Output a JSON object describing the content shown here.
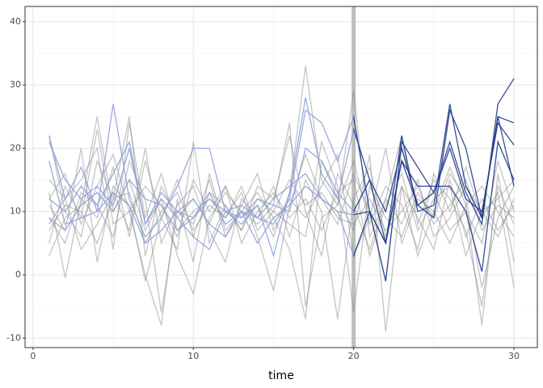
{
  "chart_data": {
    "type": "line",
    "x_label": "time",
    "x": [
      1,
      2,
      3,
      4,
      5,
      6,
      7,
      8,
      9,
      10,
      11,
      12,
      13,
      14,
      15,
      16,
      17,
      18,
      19,
      20,
      21,
      22,
      23,
      24,
      25,
      26,
      27,
      28,
      29,
      30
    ],
    "xlim": [
      -0.5,
      31.46
    ],
    "xticks": [
      0,
      10,
      20,
      30
    ],
    "x_minor_grid": [
      5,
      15,
      25
    ],
    "ylim": [
      -11.5,
      42.4
    ],
    "yticks": [
      -10,
      0,
      10,
      20,
      30,
      40
    ],
    "y_minor_grid": [
      -5,
      5,
      15,
      25,
      35
    ],
    "grid": true,
    "highlight_x": 20,
    "highlight_color": "#1f3a8a",
    "series": [
      {
        "color": "#7f7f7f",
        "opacity": 0.45,
        "values": [
          22,
          10,
          6,
          18,
          12,
          25,
          3,
          14,
          9,
          12,
          8,
          14,
          9,
          11,
          6,
          13,
          33,
          15,
          11,
          29,
          6,
          12,
          22,
          8,
          15,
          12,
          7,
          -5,
          14,
          8
        ]
      },
      {
        "color": "#7f7f7f",
        "opacity": 0.45,
        "values": [
          5,
          14,
          9,
          23,
          8,
          10,
          0,
          -8,
          12,
          2,
          16,
          7,
          10,
          13,
          9,
          4,
          -7,
          18,
          12,
          7,
          19,
          -9,
          14,
          3,
          10,
          17,
          11,
          -8,
          16,
          2
        ]
      },
      {
        "color": "#7f7f7f",
        "opacity": 0.45,
        "values": [
          13,
          -0.5,
          12,
          9,
          17,
          6,
          18,
          9,
          4,
          21,
          5,
          11,
          7,
          14,
          12,
          22,
          10,
          3,
          16,
          11,
          4,
          12,
          8,
          15,
          6,
          9,
          14,
          10,
          6,
          12
        ]
      },
      {
        "color": "#7f7f7f",
        "opacity": 0.45,
        "values": [
          8,
          12,
          15,
          20,
          4,
          24,
          9,
          16,
          7,
          10,
          12,
          9,
          13,
          6,
          -2.5,
          11,
          19,
          12,
          8,
          16,
          10,
          -1,
          20,
          11,
          13,
          7,
          10,
          5,
          18,
          10
        ]
      },
      {
        "color": "#7f7f7f",
        "opacity": 0.45,
        "values": [
          11,
          7,
          20,
          2,
          14,
          11,
          -1,
          9,
          15,
          6,
          13,
          11,
          7,
          12,
          10,
          8,
          6,
          21,
          14,
          -6,
          14,
          9,
          6,
          13,
          9,
          16,
          12,
          -2,
          9,
          14
        ]
      },
      {
        "color": "#7f7f7f",
        "opacity": 0.45,
        "values": [
          3,
          9,
          11,
          25,
          10,
          15,
          7,
          12,
          3,
          -3,
          9,
          13,
          10,
          8,
          11,
          24,
          -5,
          9,
          11,
          18,
          8,
          14,
          11,
          4,
          16,
          10,
          17,
          9,
          13,
          -2
        ]
      },
      {
        "color": "#7f7f7f",
        "opacity": 0.45,
        "values": [
          15,
          12,
          4,
          8,
          13,
          7,
          20,
          5,
          11,
          14,
          7,
          2,
          12,
          9,
          14,
          6,
          15,
          10,
          -7,
          12,
          17,
          6,
          14,
          9,
          4,
          15,
          6,
          12,
          7,
          11
        ]
      },
      {
        "color": "#7f7f7f",
        "opacity": 0.45,
        "values": [
          9,
          5,
          13,
          11,
          6,
          18,
          12,
          -6,
          10,
          8,
          15,
          6,
          11,
          16,
          7,
          12,
          9,
          14,
          19,
          3,
          9,
          20,
          5,
          12,
          10,
          5,
          11,
          14,
          10,
          6
        ]
      },
      {
        "color": "#7f7f7f",
        "opacity": 0.45,
        "values": [
          12,
          16,
          8,
          14,
          19,
          10,
          14,
          11,
          6,
          15,
          10,
          14,
          5,
          10,
          13,
          9,
          12,
          7,
          13,
          15,
          3,
          11,
          16,
          7,
          12,
          14,
          3,
          10,
          12,
          15
        ]
      },
      {
        "color": "#7f7f7f",
        "opacity": 0.45,
        "values": [
          7,
          11,
          10,
          5,
          12,
          13,
          5,
          10,
          13,
          7,
          11,
          9,
          14,
          7,
          10,
          15,
          11,
          13,
          9,
          8,
          12,
          7,
          10,
          14,
          8,
          11,
          15,
          7,
          11,
          9
        ]
      },
      {
        "color": "#8ea2d8",
        "opacity": 0.9,
        "values": [
          21,
          15,
          12,
          14,
          11,
          20,
          8,
          13,
          10,
          9,
          12,
          10,
          11,
          9,
          8,
          12,
          26,
          24,
          18,
          25,
          10,
          5,
          22,
          10,
          11,
          27,
          14,
          9,
          25,
          24
        ]
      },
      {
        "color": "#8ea2d8",
        "opacity": 0.9,
        "values": [
          22,
          12,
          17,
          10,
          27,
          12,
          6,
          9,
          14,
          20,
          20,
          10,
          8,
          11,
          3,
          13,
          28,
          16,
          12,
          23,
          15,
          10,
          20,
          11,
          13,
          21,
          13,
          8,
          27,
          31
        ]
      },
      {
        "color": "#8ea2d8",
        "opacity": 0.9,
        "values": [
          18,
          8,
          9,
          10,
          13,
          11,
          5,
          7,
          10,
          12,
          8,
          6,
          10,
          5,
          9,
          11,
          14,
          12,
          10,
          3,
          10,
          -1,
          21,
          17,
          13,
          20,
          12,
          10,
          24,
          20.5
        ]
      },
      {
        "color": "#8ea2d8",
        "opacity": 0.9,
        "values": [
          12,
          10,
          14,
          11,
          16,
          21,
          8,
          12,
          9,
          6,
          4,
          10,
          9,
          12,
          11,
          10,
          20,
          18,
          13,
          10,
          15,
          5,
          18,
          14,
          14,
          14,
          10,
          0.5,
          21,
          15
        ]
      },
      {
        "color": "#8ea2d8",
        "opacity": 0.9,
        "values": [
          9,
          7,
          11,
          13,
          10,
          15,
          12,
          11,
          7,
          9,
          13,
          8,
          10,
          9,
          12,
          14,
          16,
          12,
          10,
          9.5,
          10,
          5,
          18,
          11,
          9,
          26,
          20,
          9,
          25,
          14
        ]
      }
    ]
  }
}
